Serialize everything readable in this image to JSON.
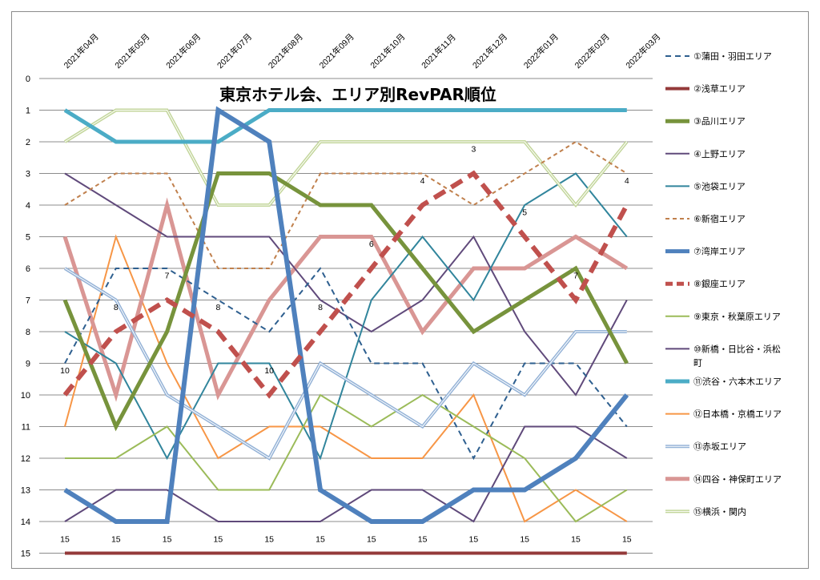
{
  "chart_data": {
    "type": "line",
    "title": "東京ホテル会、エリア別RevPAR順位",
    "xlabel": "",
    "ylabel": "",
    "x": [
      "2021年04月",
      "2021年05月",
      "2021年06月",
      "2021年07月",
      "2021年08月",
      "2021年09月",
      "2021年10月",
      "2021年11月",
      "2021年12月",
      "2022年01月",
      "2022年02月",
      "2022年03月"
    ],
    "ylim": [
      0,
      15
    ],
    "y_inverted": true,
    "y_ticks": [
      0,
      1,
      2,
      3,
      4,
      5,
      6,
      7,
      8,
      9,
      10,
      11,
      12,
      13,
      14,
      15
    ],
    "grid": true,
    "legend_position": "right",
    "series": [
      {
        "name": "①蒲田・羽田エリア",
        "values": [
          9,
          6,
          6,
          7,
          8,
          6,
          9,
          9,
          12,
          9,
          9,
          11
        ],
        "color": "#2e5f8f",
        "width": 2,
        "dash": "7,5"
      },
      {
        "name": "②浅草エリア",
        "values": [
          15,
          15,
          15,
          15,
          15,
          15,
          15,
          15,
          15,
          15,
          15,
          15
        ],
        "color": "#943a3a",
        "width": 4,
        "dash": "",
        "labels": [
          "15",
          "15",
          "15",
          "15",
          "15",
          "15",
          "15",
          "15",
          "15",
          "15",
          "15",
          "15"
        ]
      },
      {
        "name": "③品川エリア",
        "values": [
          7,
          11,
          8,
          3,
          3,
          4,
          4,
          6,
          8,
          7,
          6,
          9
        ],
        "color": "#77933c",
        "width": 5,
        "dash": ""
      },
      {
        "name": "④上野エリア",
        "values": [
          3,
          4,
          5,
          5,
          5,
          7,
          8,
          7,
          5,
          8,
          10,
          7
        ],
        "color": "#604a7b",
        "width": 2,
        "dash": ""
      },
      {
        "name": "⑤池袋エリア",
        "values": [
          8,
          9,
          12,
          9,
          9,
          12,
          7,
          5,
          7,
          4,
          3,
          5
        ],
        "color": "#31859c",
        "width": 2,
        "dash": ""
      },
      {
        "name": "⑥新宿エリア",
        "values": [
          4,
          3,
          3,
          6,
          6,
          3,
          3,
          3,
          4,
          3,
          2,
          3
        ],
        "color": "#c0804d",
        "width": 2,
        "dash": "5,4"
      },
      {
        "name": "⑦湾岸エリア",
        "values": [
          13,
          14,
          14,
          1,
          2,
          13,
          14,
          14,
          13,
          13,
          12,
          10
        ],
        "color": "#4f81bd",
        "width": 6,
        "dash": ""
      },
      {
        "name": "⑧銀座エリア",
        "values": [
          10,
          8,
          7,
          8,
          10,
          8,
          6,
          4,
          3,
          5,
          7,
          4
        ],
        "color": "#c0504d",
        "width": 6,
        "dash": "16,9",
        "labels": [
          "10",
          "8",
          "7",
          "8",
          "10",
          "8",
          "6",
          "4",
          "3",
          "5",
          "7",
          "4"
        ]
      },
      {
        "name": "⑨東京・秋葉原エリア",
        "values": [
          12,
          12,
          11,
          13,
          13,
          10,
          11,
          10,
          11,
          12,
          14,
          13
        ],
        "color": "#9bbb59",
        "width": 2,
        "dash": ""
      },
      {
        "name": "⑩新橋・日比谷・浜松町",
        "values": [
          14,
          13,
          13,
          14,
          14,
          14,
          13,
          13,
          14,
          11,
          11,
          12
        ],
        "color": "#5f497a",
        "width": 2,
        "dash": ""
      },
      {
        "name": "⑪渋谷・六本木エリア",
        "values": [
          1,
          2,
          2,
          2,
          1,
          1,
          1,
          1,
          1,
          1,
          1,
          1
        ],
        "color": "#4bacc6",
        "width": 5,
        "dash": ""
      },
      {
        "name": "⑫日本橋・京橋エリア",
        "values": [
          11,
          5,
          9,
          12,
          11,
          11,
          12,
          12,
          10,
          14,
          13,
          14
        ],
        "color": "#f79646",
        "width": 2,
        "dash": ""
      },
      {
        "name": "⑬赤坂エリア",
        "values": [
          6,
          7,
          10,
          11,
          12,
          9,
          10,
          11,
          9,
          10,
          8,
          8
        ],
        "color": "#95b3d7",
        "width": 3,
        "dash": "",
        "double": true
      },
      {
        "name": "⑭四谷・神保町エリア",
        "values": [
          5,
          10,
          4,
          10,
          7,
          5,
          5,
          8,
          6,
          6,
          5,
          6
        ],
        "color": "#d99694",
        "width": 5,
        "dash": ""
      },
      {
        "name": "⑮横浜・関内",
        "values": [
          2,
          1,
          1,
          4,
          4,
          2,
          2,
          2,
          2,
          2,
          4,
          2
        ],
        "color": "#c3d69b",
        "width": 3,
        "dash": "",
        "double": true
      }
    ]
  }
}
